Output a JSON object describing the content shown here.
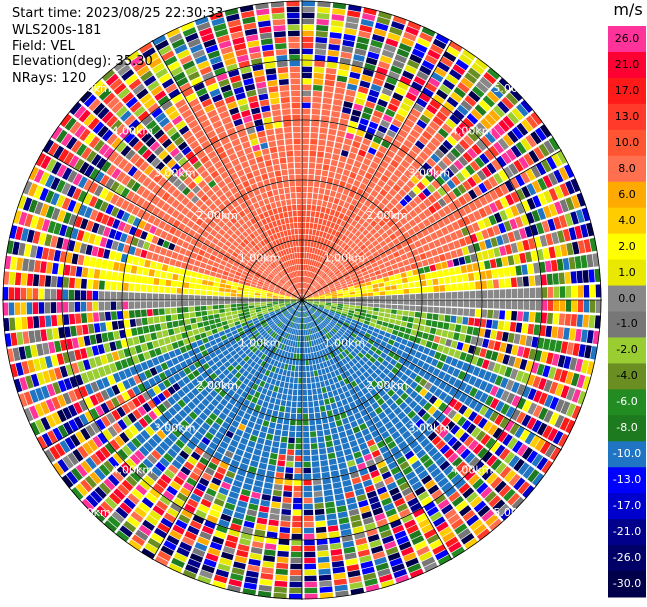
{
  "header": {
    "start_time": "Start time: 2023/08/25 22:30:33",
    "instrument": "WLS200s-181",
    "field": "Field: VEL",
    "elevation": "Elevation(deg): 35.30",
    "nrays": "NRays: 120"
  },
  "chart_data": {
    "type": "heatmap",
    "projection": "polar-ppi",
    "nrays": 120,
    "max_range_km": 5.0,
    "range_ring_labels": [
      "1.00km",
      "2.00km",
      "3.00km",
      "4.00km",
      "5.00km"
    ],
    "range_rings_km": [
      1,
      2,
      3,
      4,
      5
    ],
    "colorbar": {
      "unit": "m/s",
      "ticks": [
        "26.0",
        "21.0",
        "17.0",
        "13.0",
        "10.0",
        "8.0",
        "6.0",
        "4.0",
        "2.0",
        "1.0",
        "0.0",
        "-1.0",
        "-2.0",
        "-4.0",
        "-6.0",
        "-8.0",
        "-10.0",
        "-13.0",
        "-17.0",
        "-21.0",
        "-26.0",
        "-30.0"
      ],
      "colors": [
        "#ff3399",
        "#ff0033",
        "#ff1a1a",
        "#ff3a2a",
        "#ff5533",
        "#ff7050",
        "#ffaa00",
        "#ffcc00",
        "#ffff00",
        "#e8e800",
        "#888888",
        "#777777",
        "#9acd32",
        "#6b8e23",
        "#228b22",
        "#1e7a1e",
        "#1f75c4",
        "#0000ff",
        "#0000cc",
        "#00008b",
        "#000066",
        "#00004a"
      ]
    }
  }
}
